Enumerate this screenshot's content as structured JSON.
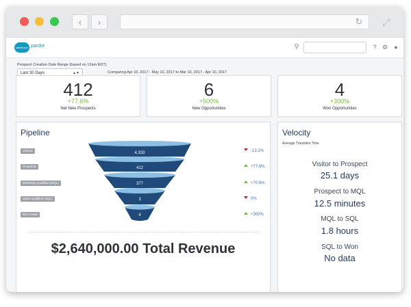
{
  "window": {
    "controls": [
      "close",
      "minimize",
      "zoom"
    ],
    "nav": {
      "back_icon": "chevron-left-icon",
      "forward_icon": "chevron-right-icon"
    },
    "url": "",
    "icons": {
      "reload": "reload-icon",
      "expand": "expand-icon"
    }
  },
  "header": {
    "logo_brand": "salesforce",
    "logo_product": "pardot",
    "search_placeholder": "",
    "icons": {
      "search": "search-icon",
      "help": "help-icon",
      "settings": "gear-icon",
      "user": "user-icon"
    }
  },
  "filter": {
    "label": "Prospect Creation Date Range (based on 12am EDT)",
    "selected": "Last 30 Days",
    "comparing": "Comparing Apr 10, 2017 - May 10, 2017 to Mar 10, 2017 - Apr 10, 2017"
  },
  "kpis": [
    {
      "value": "412",
      "delta": "+77.6%",
      "label": "Net New Prospects"
    },
    {
      "value": "6",
      "delta": "+500%",
      "label": "New Opportunities"
    },
    {
      "value": "4",
      "delta": "+300%",
      "label": "Won Opportunities"
    }
  ],
  "pipeline": {
    "title": "Pipeline",
    "stages": [
      {
        "label": "Visitors",
        "value": "4,333",
        "delta": "-13.2%",
        "direction": "down"
      },
      {
        "label": "Prospects",
        "value": "412",
        "delta": "+77.6%",
        "direction": "up"
      },
      {
        "label": "Marketing Qualified (MQL)",
        "value": "377",
        "delta": "+70.6%",
        "direction": "up"
      },
      {
        "label": "Sales Qualified (SQL)",
        "value": "3",
        "delta": "0%",
        "direction": "down"
      },
      {
        "label": "Won Deals",
        "value": "4",
        "delta": "+300%",
        "direction": "up"
      }
    ],
    "total_revenue": "$2,640,000.00 Total Revenue",
    "colors": {
      "top": "#8cbfe3",
      "body": "#1f4a7a",
      "accent": "#7ab93f",
      "down": "#a63535"
    }
  },
  "velocity": {
    "title": "Velocity",
    "subtitle": "Average Transition Time",
    "items": [
      {
        "label": "Visitor to Prospect",
        "value": "25.1 days"
      },
      {
        "label": "Prospect to MQL",
        "value": "12.5 minutes"
      },
      {
        "label": "MQL to SQL",
        "value": "1.8 hours"
      },
      {
        "label": "SQL to Won",
        "value": "No data"
      }
    ]
  }
}
